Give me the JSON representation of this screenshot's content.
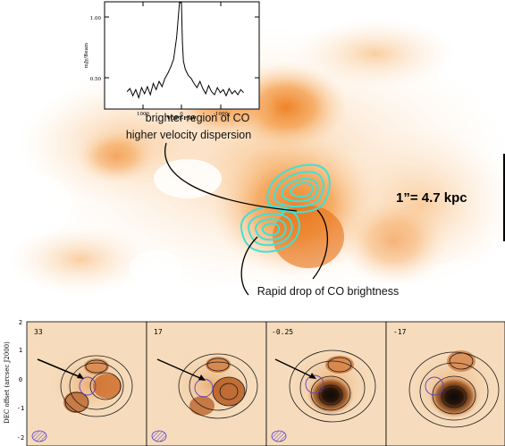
{
  "figure": {
    "top_map": {
      "annotation_upper": [
        "brighter region of CO",
        "higher velocity dispersion"
      ],
      "annotation_lower": "Rapid drop of CO brightness",
      "scale_label": "1”= 4.7 kpc",
      "colors": {
        "co_emission": "#f08a2a",
        "contours": "#3fe0d6",
        "annotation_lines": "#000000"
      }
    },
    "inset_spectrum": {
      "y_axis_label": "mJy/Beam",
      "x_axis_label": "VOPT-F5W",
      "y_ticks": [
        "1.00",
        "0.50"
      ],
      "x_ticks": [
        "1000",
        "0",
        "-1000"
      ],
      "spectrum": {
        "x_kms": [
          1400,
          1325,
          1250,
          1175,
          1100,
          1025,
          950,
          875,
          800,
          725,
          650,
          575,
          500,
          425,
          350,
          275,
          200,
          125,
          50,
          0,
          -25,
          -50,
          -100,
          -175,
          -250,
          -325,
          -400,
          -475,
          -550,
          -625,
          -700,
          -775,
          -850,
          -925,
          -1000,
          -1075,
          -1150,
          -1225,
          -1300,
          -1375,
          -1450,
          -1525,
          -1600
        ],
        "flux": [
          0.42,
          0.45,
          0.38,
          0.44,
          0.36,
          0.46,
          0.4,
          0.47,
          0.39,
          0.5,
          0.44,
          0.52,
          0.47,
          0.55,
          0.6,
          0.66,
          0.74,
          0.95,
          1.7,
          1.4,
          0.9,
          0.72,
          0.64,
          0.58,
          0.55,
          0.5,
          0.46,
          0.52,
          0.45,
          0.4,
          0.48,
          0.42,
          0.39,
          0.46,
          0.41,
          0.44,
          0.38,
          0.45,
          0.4,
          0.43,
          0.39,
          0.44,
          0.41
        ],
        "ylim": [
          0.25,
          1.3
        ]
      }
    },
    "channel_maps": {
      "y_axis_label": "DEC offset (arcsec J2000)",
      "y_ticks": [
        "2",
        "1",
        "0",
        "-1",
        "-2"
      ],
      "panels": [
        {
          "label": "33"
        },
        {
          "label": "17"
        },
        {
          "label": "-0.25"
        },
        {
          "label": "-17"
        }
      ],
      "colors": {
        "background": "#f6dcbc",
        "contours": "#1a1a1a",
        "beam": "#5a3ecf"
      }
    }
  }
}
